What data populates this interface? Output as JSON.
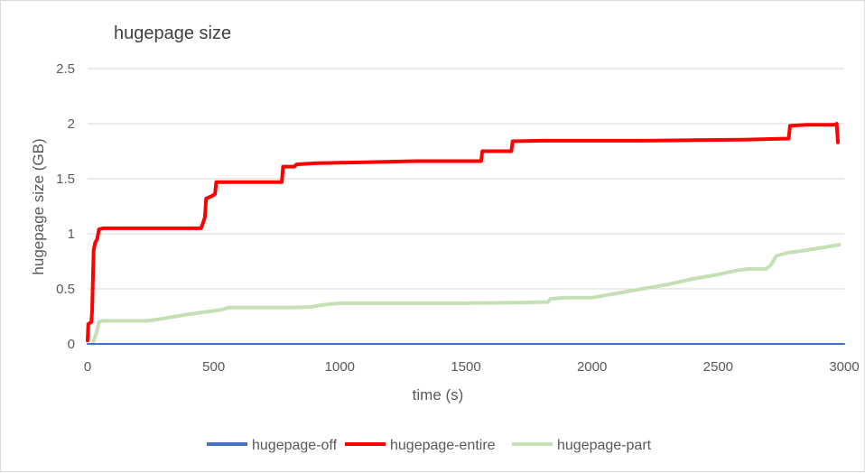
{
  "chart_data": {
    "type": "line",
    "title": "hugepage size",
    "xlabel": "time (s)",
    "ylabel": "hugepage size (GB)",
    "xlim": [
      0,
      3000
    ],
    "ylim": [
      0,
      2.5
    ],
    "xticks": [
      0,
      500,
      1000,
      1500,
      2000,
      2500,
      3000
    ],
    "xtick_labels": [
      "0",
      "500",
      "1000",
      "1500",
      "2000",
      "2500",
      "3000"
    ],
    "yticks": [
      0,
      0.5,
      1,
      1.5,
      2,
      2.5
    ],
    "ytick_labels": [
      "0",
      "0.5",
      "1",
      "1.5",
      "2",
      "2.5"
    ],
    "grid": "horizontal",
    "legend_position": "bottom",
    "series": [
      {
        "name": "hugepage-off",
        "color": "#4472c4",
        "points": [
          [
            0,
            0
          ],
          [
            3000,
            0
          ]
        ]
      },
      {
        "name": "hugepage-entire",
        "color": "#ff0000",
        "points": [
          [
            0,
            0.03
          ],
          [
            3,
            0.18
          ],
          [
            15,
            0.2
          ],
          [
            18,
            0.3
          ],
          [
            24,
            0.85
          ],
          [
            30,
            0.92
          ],
          [
            38,
            0.95
          ],
          [
            45,
            1.04
          ],
          [
            60,
            1.05
          ],
          [
            200,
            1.05
          ],
          [
            450,
            1.05
          ],
          [
            458,
            1.1
          ],
          [
            465,
            1.15
          ],
          [
            470,
            1.32
          ],
          [
            490,
            1.34
          ],
          [
            505,
            1.36
          ],
          [
            510,
            1.47
          ],
          [
            600,
            1.47
          ],
          [
            770,
            1.47
          ],
          [
            775,
            1.61
          ],
          [
            820,
            1.61
          ],
          [
            828,
            1.63
          ],
          [
            900,
            1.64
          ],
          [
            1000,
            1.645
          ],
          [
            1100,
            1.65
          ],
          [
            1200,
            1.655
          ],
          [
            1300,
            1.66
          ],
          [
            1400,
            1.66
          ],
          [
            1560,
            1.66
          ],
          [
            1565,
            1.75
          ],
          [
            1680,
            1.75
          ],
          [
            1685,
            1.84
          ],
          [
            1800,
            1.845
          ],
          [
            2000,
            1.845
          ],
          [
            2200,
            1.845
          ],
          [
            2400,
            1.85
          ],
          [
            2600,
            1.855
          ],
          [
            2780,
            1.865
          ],
          [
            2785,
            1.98
          ],
          [
            2850,
            1.99
          ],
          [
            2965,
            1.99
          ],
          [
            2970,
            2.0
          ],
          [
            2975,
            1.83
          ]
        ]
      },
      {
        "name": "hugepage-part",
        "color": "#c5e0b4",
        "points": [
          [
            20,
            0
          ],
          [
            35,
            0.1
          ],
          [
            45,
            0.2
          ],
          [
            60,
            0.21
          ],
          [
            240,
            0.21
          ],
          [
            300,
            0.23
          ],
          [
            400,
            0.27
          ],
          [
            500,
            0.3
          ],
          [
            530,
            0.31
          ],
          [
            560,
            0.33
          ],
          [
            600,
            0.33
          ],
          [
            700,
            0.33
          ],
          [
            800,
            0.33
          ],
          [
            880,
            0.335
          ],
          [
            950,
            0.36
          ],
          [
            1000,
            0.37
          ],
          [
            1100,
            0.37
          ],
          [
            1300,
            0.37
          ],
          [
            1500,
            0.37
          ],
          [
            1700,
            0.375
          ],
          [
            1825,
            0.38
          ],
          [
            1835,
            0.41
          ],
          [
            1900,
            0.42
          ],
          [
            2000,
            0.42
          ],
          [
            2050,
            0.44
          ],
          [
            2100,
            0.46
          ],
          [
            2200,
            0.5
          ],
          [
            2300,
            0.54
          ],
          [
            2400,
            0.59
          ],
          [
            2500,
            0.63
          ],
          [
            2580,
            0.67
          ],
          [
            2620,
            0.68
          ],
          [
            2690,
            0.68
          ],
          [
            2710,
            0.72
          ],
          [
            2730,
            0.8
          ],
          [
            2780,
            0.83
          ],
          [
            2820,
            0.84
          ],
          [
            2900,
            0.87
          ],
          [
            2980,
            0.9
          ]
        ]
      }
    ]
  }
}
